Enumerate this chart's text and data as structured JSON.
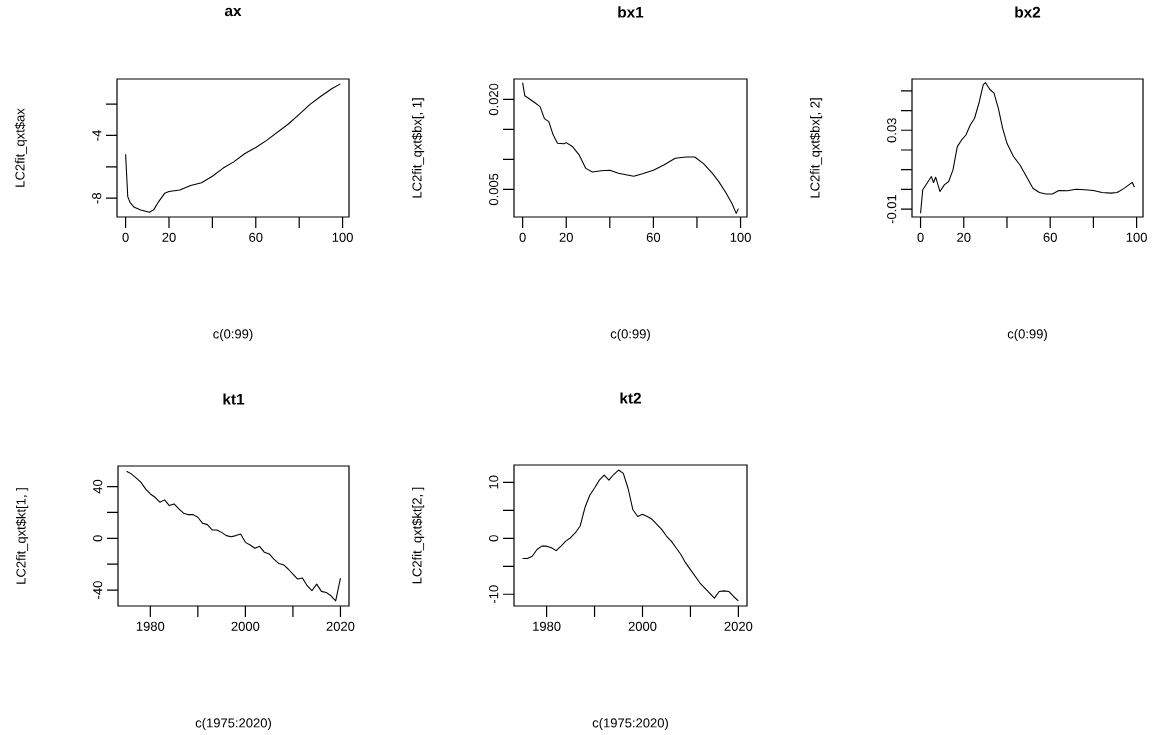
{
  "chart_data": [
    {
      "type": "line",
      "title": "ax",
      "xlabel": "c(0:99)",
      "ylabel": "LC2fit_qxt$ax",
      "color": "#000000",
      "x": [
        0,
        1,
        2,
        4,
        7,
        11,
        13,
        15,
        18,
        20,
        25,
        30,
        35,
        40,
        45,
        50,
        55,
        60,
        65,
        70,
        75,
        80,
        85,
        90,
        95,
        99
      ],
      "values": [
        -5.2,
        -7.9,
        -8.27,
        -8.58,
        -8.75,
        -8.9,
        -8.73,
        -8.27,
        -7.69,
        -7.58,
        -7.48,
        -7.19,
        -7.02,
        -6.6,
        -6.08,
        -5.67,
        -5.15,
        -4.77,
        -4.31,
        -3.79,
        -3.27,
        -2.65,
        -2.02,
        -1.5,
        -1.02,
        -0.71
      ],
      "xlim": [
        -3.96,
        102.96
      ],
      "ylim": [
        -9.2,
        -0.4
      ],
      "xticks": [
        0,
        20,
        {
          "value": 40,
          "label": null
        },
        60,
        {
          "value": 80,
          "label": null
        },
        100
      ],
      "yticks": [
        -8,
        {
          "value": -6,
          "label": null
        },
        -4,
        {
          "value": -2,
          "label": null
        }
      ]
    },
    {
      "type": "line",
      "title": "bx1",
      "xlabel": "c(0:99)",
      "ylabel": "LC2fit_qxt$bx[, 1]",
      "color": "#000000",
      "x": [
        0,
        1,
        5,
        8,
        10,
        12,
        14,
        16,
        19,
        20,
        23,
        26,
        29,
        32,
        36,
        40,
        44,
        48,
        51,
        55,
        60,
        65,
        70,
        75,
        79,
        83,
        87,
        90,
        93,
        96,
        98,
        99
      ],
      "values": [
        0.0228,
        0.0206,
        0.0196,
        0.0188,
        0.0168,
        0.0163,
        0.0141,
        0.0127,
        0.0126,
        0.0128,
        0.0121,
        0.0107,
        0.0085,
        0.0079,
        0.0081,
        0.0082,
        0.0077,
        0.0074,
        0.0072,
        0.0076,
        0.0082,
        0.0091,
        0.0102,
        0.0104,
        0.0104,
        0.0093,
        0.0077,
        0.0063,
        0.0046,
        0.0027,
        0.001,
        0.0018
      ],
      "xlim": [
        -3.96,
        102.96
      ],
      "ylim": [
        0.0004,
        0.0234
      ],
      "xticks": [
        0,
        20,
        {
          "value": 40,
          "label": null
        },
        60,
        {
          "value": 80,
          "label": null
        },
        100
      ],
      "yticks": [
        0.005,
        {
          "value": 0.01,
          "label": null
        },
        {
          "value": 0.015,
          "label": null
        },
        {
          "value": 0.02,
          "label": "0.020"
        }
      ]
    },
    {
      "type": "line",
      "title": "bx2",
      "xlabel": "c(0:99)",
      "ylabel": "LC2fit_qxt$bx[, 2]",
      "color": "#000000",
      "x": [
        0,
        1,
        3,
        5,
        6,
        7,
        9,
        11,
        13,
        15,
        17,
        19,
        21,
        23,
        25,
        27,
        29,
        30,
        32,
        34,
        36,
        38,
        40,
        43,
        46,
        49,
        52,
        55,
        58,
        61,
        64,
        68,
        72,
        76,
        80,
        84,
        88,
        91,
        94,
        97,
        98,
        99
      ],
      "values": [
        -0.0121,
        -0.0002,
        0.0031,
        0.0065,
        0.0035,
        0.0062,
        -0.0011,
        0.0023,
        0.004,
        0.0099,
        0.0217,
        0.0251,
        0.0276,
        0.0327,
        0.0361,
        0.0437,
        0.053,
        0.0542,
        0.0508,
        0.0488,
        0.0411,
        0.031,
        0.0234,
        0.0167,
        0.0124,
        0.0065,
        0.0006,
        -0.0016,
        -0.0023,
        -0.0023,
        -0.0006,
        -0.0007,
        0.0001,
        -0.0002,
        -0.0006,
        -0.0016,
        -0.0019,
        -0.0016,
        0.0004,
        0.0028,
        0.0035,
        0.0011
      ],
      "xlim": [
        -3.96,
        102.96
      ],
      "ylim": [
        -0.014,
        0.056
      ],
      "xticks": [
        0,
        20,
        {
          "value": 40,
          "label": null
        },
        60,
        {
          "value": 80,
          "label": null
        },
        100
      ],
      "yticks": [
        -0.01,
        {
          "value": 0,
          "label": null
        },
        {
          "value": 0.01,
          "label": null
        },
        {
          "value": 0.02,
          "label": null
        },
        0.03,
        {
          "value": 0.04,
          "label": null
        },
        {
          "value": 0.05,
          "label": null
        }
      ]
    },
    {
      "type": "line",
      "title": "kt1",
      "xlabel": "c(1975:2020)",
      "ylabel": "LC2fit_qxt$kt[1, ]",
      "color": "#000000",
      "x": [
        1975,
        1976,
        1977,
        1978,
        1979,
        1980,
        1981,
        1982,
        1983,
        1984,
        1985,
        1986,
        1987,
        1988,
        1989,
        1990,
        1991,
        1992,
        1993,
        1994,
        1995,
        1996,
        1997,
        1998,
        1999,
        2000,
        2001,
        2002,
        2003,
        2004,
        2005,
        2006,
        2007,
        2008,
        2009,
        2010,
        2011,
        2012,
        2013,
        2014,
        2015,
        2016,
        2017,
        2018,
        2019,
        2020
      ],
      "values": [
        51.9,
        49.8,
        46.7,
        43.4,
        38.2,
        34.3,
        31.7,
        27.9,
        29.7,
        25.3,
        26.6,
        22.7,
        19.4,
        18.3,
        18.3,
        16.3,
        11.6,
        10.6,
        6.5,
        6.5,
        4.6,
        2.1,
        1.3,
        2.1,
        3.4,
        -3.1,
        -5.2,
        -7.7,
        -6.2,
        -10.8,
        -12.1,
        -16,
        -19.4,
        -20.4,
        -23.7,
        -27.6,
        -31.5,
        -30.7,
        -36.6,
        -40.5,
        -35.4,
        -41,
        -41.8,
        -44.4,
        -48.3,
        -30.7
      ],
      "xlim": [
        1973.2,
        2021.8
      ],
      "ylim": [
        -52.3,
        55.9
      ],
      "xticks": [
        1980,
        {
          "value": 1990,
          "label": null
        },
        2000,
        {
          "value": 2010,
          "label": null
        },
        2020
      ],
      "yticks": [
        -40,
        {
          "value": -20,
          "label": null
        },
        0,
        {
          "value": 20,
          "label": null
        },
        40
      ]
    },
    {
      "type": "line",
      "title": "kt2",
      "xlabel": "c(1975:2020)",
      "ylabel": "LC2fit_qxt$kt[2, ]",
      "color": "#000000",
      "x": [
        1975,
        1976,
        1977,
        1978,
        1979,
        1980,
        1981,
        1982,
        1983,
        1984,
        1985,
        1986,
        1987,
        1988,
        1989,
        1990,
        1991,
        1992,
        1993,
        1994,
        1995,
        1996,
        1997,
        1998,
        1999,
        2000,
        2001,
        2002,
        2003,
        2004,
        2005,
        2006,
        2007,
        2008,
        2009,
        2010,
        2011,
        2012,
        2013,
        2014,
        2015,
        2016,
        2017,
        2018,
        2019,
        2020
      ],
      "values": [
        -3.6,
        -3.6,
        -3.2,
        -2,
        -1.4,
        -1.4,
        -1.7,
        -2.2,
        -1.4,
        -0.5,
        0.1,
        1,
        2.2,
        5.5,
        7.7,
        9,
        10.4,
        11.3,
        10.4,
        11.4,
        12.2,
        11.6,
        8.9,
        5.1,
        3.9,
        4.3,
        3.9,
        3.4,
        2.5,
        1.6,
        0.4,
        -0.5,
        -1.7,
        -2.9,
        -4.4,
        -5.6,
        -6.8,
        -8,
        -8.9,
        -9.8,
        -10.7,
        -9.5,
        -9.4,
        -9.5,
        -10.4,
        -11.2
      ],
      "xlim": [
        1973.2,
        2021.8
      ],
      "ylim": [
        -12.1,
        13.1
      ],
      "xticks": [
        1980,
        {
          "value": 1990,
          "label": null
        },
        2000,
        {
          "value": 2010,
          "label": null
        },
        2020
      ],
      "yticks": [
        -10,
        {
          "value": -5,
          "label": null
        },
        0,
        {
          "value": 5,
          "label": null
        },
        10
      ]
    }
  ]
}
